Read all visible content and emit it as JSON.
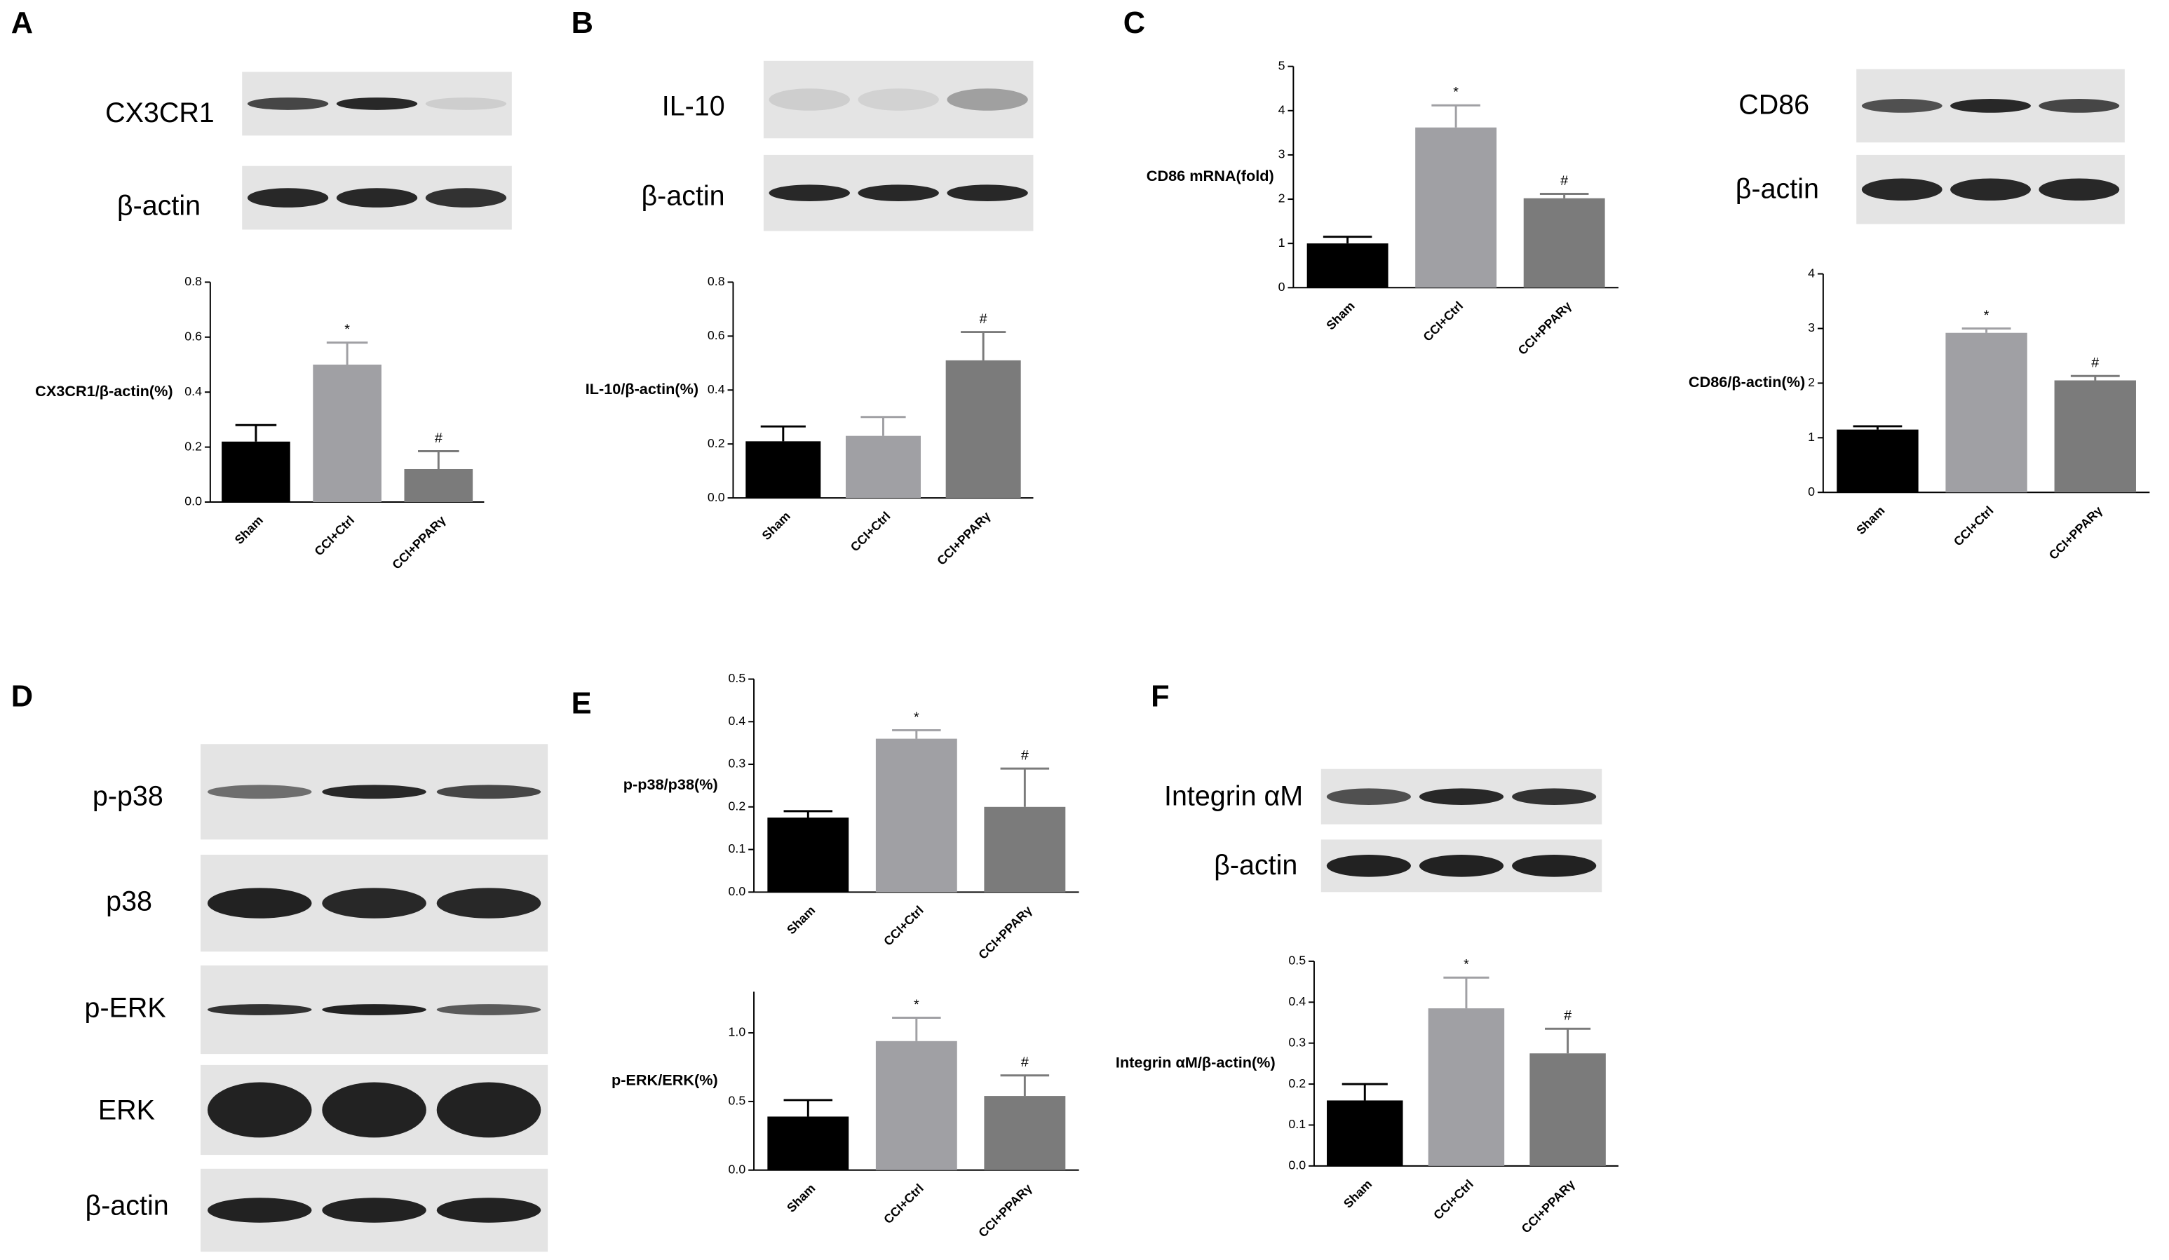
{
  "panels": [
    {
      "label": "A",
      "blots": [
        "CX3CR1",
        "β-actin"
      ]
    },
    {
      "label": "B",
      "blots": [
        "IL-10",
        "β-actin"
      ]
    },
    {
      "label": "C",
      "blots": [
        "CD86",
        "β-actin"
      ]
    },
    {
      "label": "D",
      "blots": [
        "p-p38",
        "p38",
        "p-ERK",
        "ERK",
        "β-actin"
      ]
    },
    {
      "label": "E",
      "blots": []
    },
    {
      "label": "F",
      "blots": [
        "Integrin αM",
        "β-actin"
      ]
    }
  ],
  "chart_data": [
    {
      "type": "bar",
      "ylabel": "CX3CR1/β-actin(%)",
      "categories": [
        "Sham",
        "CCI+Ctrl",
        "CCI+PPARγ"
      ],
      "values": [
        0.22,
        0.5,
        0.12
      ],
      "errors": [
        0.06,
        0.08,
        0.065
      ],
      "markers": [
        null,
        "*",
        "#"
      ],
      "colors": [
        "#000000",
        "#a0a0a4",
        "#7b7b7b"
      ],
      "ylim": [
        0,
        0.8
      ],
      "yticks": [
        {
          "value": 0,
          "label": "0.0"
        },
        0.2,
        0.4,
        0.6,
        0.8
      ]
    },
    {
      "type": "bar",
      "ylabel": "IL-10/β-actin(%)",
      "categories": [
        "Sham",
        "CCI+Ctrl",
        "CCI+PPARγ"
      ],
      "values": [
        0.21,
        0.23,
        0.51
      ],
      "errors": [
        0.055,
        0.07,
        0.105
      ],
      "markers": [
        null,
        null,
        "#"
      ],
      "colors": [
        "#000000",
        "#a0a0a4",
        "#7b7b7b"
      ],
      "ylim": [
        0,
        0.8
      ],
      "yticks": [
        {
          "value": 0,
          "label": "0.0"
        },
        0.2,
        0.4,
        0.6,
        0.8
      ]
    },
    {
      "type": "bar",
      "ylabel": "CD86 mRNA(fold)",
      "categories": [
        "Sham",
        "CCI+Ctrl",
        "CCI+PPARγ"
      ],
      "values": [
        1.0,
        3.62,
        2.02
      ],
      "errors": [
        0.15,
        0.5,
        0.1
      ],
      "markers": [
        null,
        "*",
        "#"
      ],
      "colors": [
        "#000000",
        "#a0a0a4",
        "#7b7b7b"
      ],
      "ylim": [
        0,
        5
      ],
      "yticks": [
        0,
        1,
        2,
        3,
        4,
        5
      ]
    },
    {
      "type": "bar",
      "ylabel": "CD86/β-actin(%)",
      "categories": [
        "Sham",
        "CCI+Ctrl",
        "CCI+PPARγ"
      ],
      "values": [
        1.15,
        2.92,
        2.05
      ],
      "errors": [
        0.06,
        0.08,
        0.08
      ],
      "markers": [
        null,
        "*",
        "#"
      ],
      "colors": [
        "#000000",
        "#a0a0a4",
        "#7b7b7b"
      ],
      "ylim": [
        0,
        4
      ],
      "yticks": [
        0,
        1,
        2,
        3,
        4
      ]
    },
    {
      "type": "bar",
      "ylabel": "p-p38/p38(%)",
      "categories": [
        "Sham",
        "CCI+Ctrl",
        "CCI+PPARγ"
      ],
      "values": [
        0.175,
        0.36,
        0.2
      ],
      "errors": [
        0.015,
        0.02,
        0.09
      ],
      "markers": [
        null,
        "*",
        "#"
      ],
      "colors": [
        "#000000",
        "#a0a0a4",
        "#7b7b7b"
      ],
      "ylim": [
        0,
        0.5
      ],
      "yticks": [
        {
          "value": 0,
          "label": "0.0"
        },
        0.1,
        0.2,
        0.3,
        0.4,
        0.5
      ]
    },
    {
      "type": "bar",
      "ylabel": "p-ERK/ERK(%)",
      "categories": [
        "Sham",
        "CCI+Ctrl",
        "CCI+PPARγ"
      ],
      "values": [
        0.39,
        0.94,
        0.54
      ],
      "errors": [
        0.12,
        0.17,
        0.15
      ],
      "markers": [
        null,
        "*",
        "#"
      ],
      "colors": [
        "#000000",
        "#a0a0a4",
        "#7b7b7b"
      ],
      "ylim": [
        0,
        1.3
      ],
      "yticks": [
        {
          "value": 0,
          "label": "0.0"
        },
        0.5,
        {
          "value": 1,
          "label": "1.0"
        }
      ]
    },
    {
      "type": "bar",
      "ylabel": "Integrin αM/β-actin(%)",
      "categories": [
        "Sham",
        "CCI+Ctrl",
        "CCI+PPARγ"
      ],
      "values": [
        0.16,
        0.385,
        0.275
      ],
      "errors": [
        0.04,
        0.075,
        0.06
      ],
      "markers": [
        null,
        "*",
        "#"
      ],
      "colors": [
        "#000000",
        "#a0a0a4",
        "#7b7b7b"
      ],
      "ylim": [
        0,
        0.5
      ],
      "yticks": [
        {
          "value": 0,
          "label": "0.0"
        },
        0.1,
        0.2,
        0.3,
        0.4,
        0.5
      ]
    }
  ]
}
